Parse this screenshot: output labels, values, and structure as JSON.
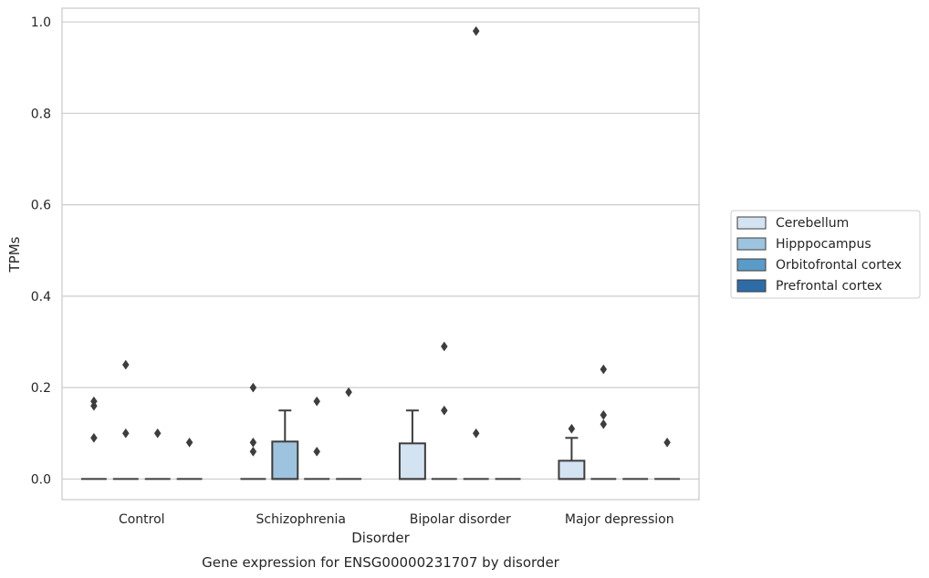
{
  "chart_data": {
    "type": "box",
    "title": "",
    "caption": "Gene expression for ENSG00000231707 by disorder",
    "xlabel": "Disorder",
    "ylabel": "TPMs",
    "ylim": [
      -0.045,
      1.03
    ],
    "yticks": [
      0.0,
      0.2,
      0.4,
      0.6,
      0.8,
      1.0
    ],
    "ytick_labels": [
      "0.0",
      "0.2",
      "0.4",
      "0.6",
      "0.8",
      "1.0"
    ],
    "categories": [
      "Control",
      "Schizophrenia",
      "Bipolar disorder",
      "Major depression"
    ],
    "grid": true,
    "legend_position": "right",
    "series": [
      {
        "name": "Cerebellum",
        "color": "#d4e3f2",
        "boxes": [
          {
            "q1": 0,
            "median": 0,
            "q3": 0,
            "whisker_low": 0,
            "whisker_high": 0,
            "outliers": [
              0.09,
              0.16,
              0.17
            ]
          },
          {
            "q1": 0,
            "median": 0,
            "q3": 0,
            "whisker_low": 0,
            "whisker_high": 0,
            "outliers": [
              0.06,
              0.08,
              0.2
            ]
          },
          {
            "q1": 0,
            "median": 0,
            "q3": 0.078,
            "whisker_low": 0,
            "whisker_high": 0.15,
            "outliers": []
          },
          {
            "q1": 0,
            "median": 0,
            "q3": 0.04,
            "whisker_low": 0,
            "whisker_high": 0.09,
            "outliers": [
              0.11
            ]
          }
        ]
      },
      {
        "name": "Hipppocampus",
        "color": "#9ec3de",
        "boxes": [
          {
            "q1": 0,
            "median": 0,
            "q3": 0,
            "whisker_low": 0,
            "whisker_high": 0,
            "outliers": [
              0.25,
              0.1
            ]
          },
          {
            "q1": 0,
            "median": 0,
            "q3": 0.082,
            "whisker_low": 0,
            "whisker_high": 0.15,
            "outliers": []
          },
          {
            "q1": 0,
            "median": 0,
            "q3": 0,
            "whisker_low": 0,
            "whisker_high": 0,
            "outliers": [
              0.29,
              0.15
            ]
          },
          {
            "q1": 0,
            "median": 0,
            "q3": 0,
            "whisker_low": 0,
            "whisker_high": 0,
            "outliers": [
              0.24,
              0.14,
              0.12
            ]
          }
        ]
      },
      {
        "name": "Orbitofrontal cortex",
        "color": "#5a9bc9",
        "boxes": [
          {
            "q1": 0,
            "median": 0,
            "q3": 0,
            "whisker_low": 0,
            "whisker_high": 0,
            "outliers": [
              0.1
            ]
          },
          {
            "q1": 0,
            "median": 0,
            "q3": 0,
            "whisker_low": 0,
            "whisker_high": 0,
            "outliers": [
              0.06,
              0.17
            ]
          },
          {
            "q1": 0,
            "median": 0,
            "q3": 0,
            "whisker_low": 0,
            "whisker_high": 0,
            "outliers": [
              0.98,
              0.1
            ]
          },
          {
            "q1": 0,
            "median": 0,
            "q3": 0,
            "whisker_low": 0,
            "whisker_high": 0,
            "outliers": []
          }
        ]
      },
      {
        "name": "Prefrontal cortex",
        "color": "#2e6ca8",
        "boxes": [
          {
            "q1": 0,
            "median": 0,
            "q3": 0,
            "whisker_low": 0,
            "whisker_high": 0,
            "outliers": [
              0.08
            ]
          },
          {
            "q1": 0,
            "median": 0,
            "q3": 0,
            "whisker_low": 0,
            "whisker_high": 0,
            "outliers": [
              0.19
            ]
          },
          {
            "q1": 0,
            "median": 0,
            "q3": 0,
            "whisker_low": 0,
            "whisker_high": 0,
            "outliers": []
          },
          {
            "q1": 0,
            "median": 0,
            "q3": 0,
            "whisker_low": 0,
            "whisker_high": 0,
            "outliers": [
              0.08
            ]
          }
        ]
      }
    ]
  }
}
